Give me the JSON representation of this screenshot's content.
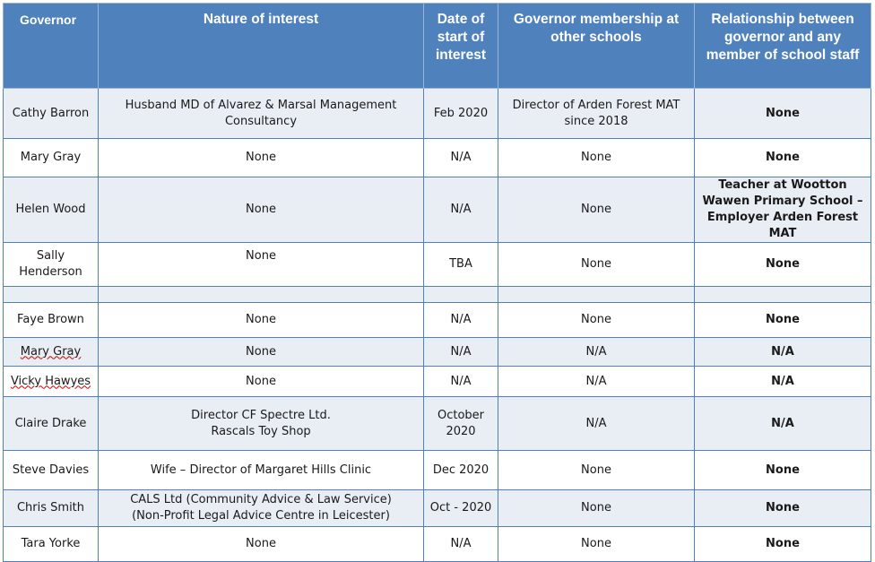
{
  "table": {
    "headers": [
      "Governor",
      "Nature of interest",
      "Date of start of interest",
      "Governor membership at other schools",
      "Relationship between governor and any member of school staff"
    ],
    "rows": [
      {
        "governor": "Cathy Barron",
        "interest": "Husband MD of Alvarez & Marsal Management Consultancy",
        "date": "Feb 2020",
        "membership": "Director of Arden Forest MAT since 2018",
        "relationship": "None"
      },
      {
        "governor": "Mary Gray",
        "interest": "None",
        "date": "N/A",
        "membership": "None",
        "relationship": "None"
      },
      {
        "governor": "Helen Wood",
        "interest": "None",
        "date": "N/A",
        "membership": "None",
        "relationship": "Teacher at Wootton Wawen Primary School – Employer Arden Forest MAT"
      },
      {
        "governor": "Sally Henderson",
        "interest": "None",
        "date": "TBA",
        "membership": "None",
        "relationship": "None"
      },
      {
        "governor": "",
        "interest": "",
        "date": "",
        "membership": "",
        "relationship": ""
      },
      {
        "governor": "Faye Brown",
        "interest": "None",
        "date": "N/A",
        "membership": "None",
        "relationship": "None"
      },
      {
        "governor": "Mary Gray",
        "interest": "None",
        "date": "N/A",
        "membership": "N/A",
        "relationship": "N/A"
      },
      {
        "governor": "Vicky Hawyes",
        "interest": "None",
        "date": "N/A",
        "membership": "N/A",
        "relationship": "N/A"
      },
      {
        "governor": "Claire Drake",
        "interest": "Director CF Spectre Ltd.\nRascals Toy Shop",
        "date": "October 2020",
        "membership": "N/A",
        "relationship": "N/A"
      },
      {
        "governor": "Steve Davies",
        "interest": "Wife – Director of Margaret Hills Clinic",
        "date": "Dec 2020",
        "membership": "None",
        "relationship": "None"
      },
      {
        "governor": "Chris Smith",
        "interest": "CALS Ltd (Community Advice & Law Service)\n(Non-Profit Legal Advice Centre in Leicester)",
        "date": "Oct - 2020",
        "membership": "None",
        "relationship": "None"
      },
      {
        "governor": "Tara Yorke",
        "interest": "None",
        "date": "N/A",
        "membership": "None",
        "relationship": "None"
      }
    ]
  }
}
